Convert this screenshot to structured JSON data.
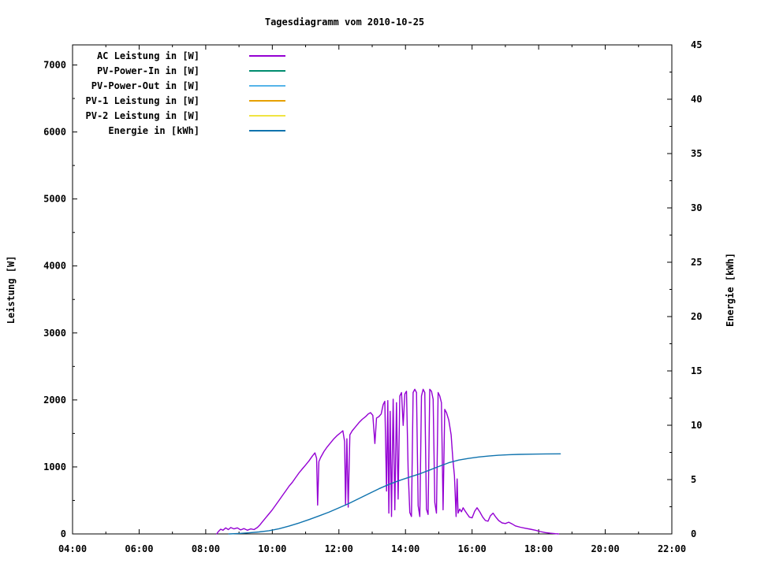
{
  "colors": {
    "background": "#ffffff",
    "axis": "#000000",
    "text": "#000000"
  },
  "chart_data": {
    "type": "line",
    "title": "Tagesdiagramm vom 2010-10-25",
    "x_axis": {
      "tick_hours": [
        4,
        6,
        8,
        10,
        12,
        14,
        16,
        18,
        20,
        22
      ],
      "tick_labels": [
        "04:00",
        "06:00",
        "08:00",
        "10:00",
        "12:00",
        "14:00",
        "16:00",
        "18:00",
        "20:00",
        "22:00"
      ],
      "minor_step_h": 1,
      "range_hours": [
        4,
        22
      ]
    },
    "y_left": {
      "label": "Leistung [W]",
      "ticks": [
        0,
        1000,
        2000,
        3000,
        4000,
        5000,
        6000,
        7000
      ],
      "minor_step": 500,
      "range": [
        0,
        7300
      ]
    },
    "y_right": {
      "label": "Energie [kWh]",
      "ticks": [
        0,
        5,
        10,
        15,
        20,
        25,
        30,
        35,
        40,
        45
      ],
      "minor_step": 2.5,
      "range": [
        0,
        45
      ]
    },
    "legend": [
      {
        "label": "AC Leistung in [W]",
        "color": "#9400d3"
      },
      {
        "label": "PV-Power-In in [W]",
        "color": "#008c6e"
      },
      {
        "label": "PV-Power-Out in [W]",
        "color": "#56b4e9"
      },
      {
        "label": "PV-1 Leistung in [W]",
        "color": "#e6a000"
      },
      {
        "label": "PV-2 Leistung in [W]",
        "color": "#f0e442"
      },
      {
        "label": "Energie in [kWh]",
        "color": "#0f73ae"
      }
    ],
    "series": [
      {
        "name": "AC Leistung in [W]",
        "color": "#9400d3",
        "axis": "left",
        "points": [
          [
            8.33,
            0
          ],
          [
            8.38,
            35
          ],
          [
            8.45,
            70
          ],
          [
            8.52,
            55
          ],
          [
            8.6,
            90
          ],
          [
            8.68,
            65
          ],
          [
            8.75,
            95
          ],
          [
            8.85,
            75
          ],
          [
            8.95,
            90
          ],
          [
            9.05,
            60
          ],
          [
            9.15,
            80
          ],
          [
            9.25,
            55
          ],
          [
            9.35,
            75
          ],
          [
            9.45,
            65
          ],
          [
            9.55,
            95
          ],
          [
            9.62,
            130
          ],
          [
            9.7,
            180
          ],
          [
            9.8,
            240
          ],
          [
            9.9,
            300
          ],
          [
            10.0,
            360
          ],
          [
            10.1,
            430
          ],
          [
            10.2,
            500
          ],
          [
            10.3,
            570
          ],
          [
            10.4,
            640
          ],
          [
            10.5,
            710
          ],
          [
            10.6,
            770
          ],
          [
            10.7,
            840
          ],
          [
            10.8,
            910
          ],
          [
            10.9,
            970
          ],
          [
            11.0,
            1030
          ],
          [
            11.1,
            1090
          ],
          [
            11.2,
            1160
          ],
          [
            11.28,
            1210
          ],
          [
            11.33,
            1130
          ],
          [
            11.36,
            430
          ],
          [
            11.4,
            1080
          ],
          [
            11.45,
            1140
          ],
          [
            11.55,
            1230
          ],
          [
            11.65,
            1300
          ],
          [
            11.75,
            1360
          ],
          [
            11.85,
            1420
          ],
          [
            11.95,
            1470
          ],
          [
            12.05,
            1510
          ],
          [
            12.12,
            1540
          ],
          [
            12.17,
            1380
          ],
          [
            12.2,
            430
          ],
          [
            12.24,
            1420
          ],
          [
            12.28,
            400
          ],
          [
            12.33,
            1480
          ],
          [
            12.4,
            1540
          ],
          [
            12.5,
            1600
          ],
          [
            12.6,
            1660
          ],
          [
            12.7,
            1710
          ],
          [
            12.8,
            1750
          ],
          [
            12.88,
            1790
          ],
          [
            12.95,
            1810
          ],
          [
            13.02,
            1770
          ],
          [
            13.08,
            1350
          ],
          [
            13.13,
            1730
          ],
          [
            13.2,
            1750
          ],
          [
            13.27,
            1790
          ],
          [
            13.33,
            1930
          ],
          [
            13.38,
            1980
          ],
          [
            13.43,
            640
          ],
          [
            13.47,
            1990
          ],
          [
            13.5,
            310
          ],
          [
            13.54,
            1830
          ],
          [
            13.58,
            260
          ],
          [
            13.63,
            2010
          ],
          [
            13.68,
            360
          ],
          [
            13.73,
            1960
          ],
          [
            13.78,
            520
          ],
          [
            13.83,
            2060
          ],
          [
            13.88,
            2110
          ],
          [
            13.93,
            1620
          ],
          [
            13.98,
            2090
          ],
          [
            14.03,
            2130
          ],
          [
            14.08,
            950
          ],
          [
            14.13,
            320
          ],
          [
            14.18,
            260
          ],
          [
            14.23,
            2110
          ],
          [
            14.28,
            2160
          ],
          [
            14.33,
            2110
          ],
          [
            14.38,
            420
          ],
          [
            14.43,
            260
          ],
          [
            14.48,
            2060
          ],
          [
            14.53,
            2160
          ],
          [
            14.58,
            2110
          ],
          [
            14.63,
            370
          ],
          [
            14.68,
            290
          ],
          [
            14.73,
            2160
          ],
          [
            14.78,
            2130
          ],
          [
            14.83,
            2010
          ],
          [
            14.88,
            470
          ],
          [
            14.93,
            310
          ],
          [
            14.98,
            2110
          ],
          [
            15.03,
            2060
          ],
          [
            15.08,
            1960
          ],
          [
            15.13,
            360
          ],
          [
            15.18,
            1860
          ],
          [
            15.23,
            1810
          ],
          [
            15.3,
            1700
          ],
          [
            15.37,
            1480
          ],
          [
            15.42,
            1130
          ],
          [
            15.47,
            870
          ],
          [
            15.52,
            260
          ],
          [
            15.55,
            820
          ],
          [
            15.58,
            310
          ],
          [
            15.63,
            370
          ],
          [
            15.68,
            330
          ],
          [
            15.73,
            390
          ],
          [
            15.78,
            350
          ],
          [
            15.85,
            300
          ],
          [
            15.92,
            250
          ],
          [
            16.0,
            240
          ],
          [
            16.08,
            340
          ],
          [
            16.15,
            390
          ],
          [
            16.23,
            330
          ],
          [
            16.32,
            250
          ],
          [
            16.4,
            200
          ],
          [
            16.48,
            190
          ],
          [
            16.55,
            270
          ],
          [
            16.63,
            310
          ],
          [
            16.7,
            260
          ],
          [
            16.8,
            200
          ],
          [
            16.9,
            165
          ],
          [
            17.0,
            155
          ],
          [
            17.1,
            175
          ],
          [
            17.2,
            150
          ],
          [
            17.3,
            120
          ],
          [
            17.45,
            100
          ],
          [
            17.6,
            85
          ],
          [
            17.75,
            70
          ],
          [
            17.9,
            55
          ],
          [
            18.05,
            35
          ],
          [
            18.2,
            20
          ],
          [
            18.35,
            10
          ],
          [
            18.5,
            4
          ],
          [
            18.6,
            0
          ]
        ]
      },
      {
        "name": "PV-Power-In in [W]",
        "color": "#008c6e",
        "axis": "left",
        "points": []
      },
      {
        "name": "PV-Power-Out in [W]",
        "color": "#56b4e9",
        "axis": "left",
        "points": []
      },
      {
        "name": "PV-1 Leistung in [W]",
        "color": "#e6a000",
        "axis": "left",
        "points": []
      },
      {
        "name": "PV-2 Leistung in [W]",
        "color": "#f0e442",
        "axis": "left",
        "points": []
      },
      {
        "name": "Energie in [kWh]",
        "color": "#0f73ae",
        "axis": "right",
        "points": [
          [
            8.7,
            0
          ],
          [
            9.0,
            0.04
          ],
          [
            9.3,
            0.1
          ],
          [
            9.6,
            0.18
          ],
          [
            9.9,
            0.3
          ],
          [
            10.2,
            0.48
          ],
          [
            10.5,
            0.72
          ],
          [
            10.8,
            1.0
          ],
          [
            11.1,
            1.32
          ],
          [
            11.4,
            1.65
          ],
          [
            11.7,
            2.0
          ],
          [
            12.0,
            2.4
          ],
          [
            12.3,
            2.8
          ],
          [
            12.6,
            3.25
          ],
          [
            12.9,
            3.7
          ],
          [
            13.2,
            4.15
          ],
          [
            13.5,
            4.55
          ],
          [
            13.8,
            4.9
          ],
          [
            14.1,
            5.2
          ],
          [
            14.4,
            5.5
          ],
          [
            14.7,
            5.85
          ],
          [
            15.0,
            6.2
          ],
          [
            15.3,
            6.55
          ],
          [
            15.6,
            6.8
          ],
          [
            15.9,
            6.95
          ],
          [
            16.2,
            7.08
          ],
          [
            16.5,
            7.17
          ],
          [
            16.8,
            7.24
          ],
          [
            17.1,
            7.29
          ],
          [
            17.4,
            7.32
          ],
          [
            17.8,
            7.34
          ],
          [
            18.2,
            7.36
          ],
          [
            18.65,
            7.37
          ]
        ]
      }
    ]
  }
}
